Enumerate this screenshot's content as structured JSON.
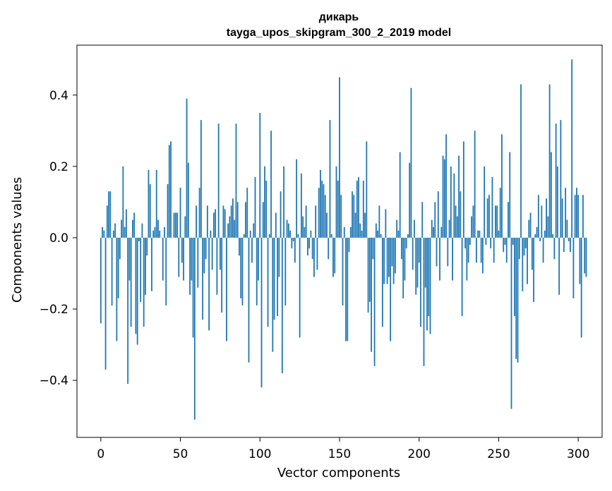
{
  "chart_data": {
    "type": "bar",
    "title_line1": "дикарь",
    "title_line2": "tayga_upos_skipgram_300_2_2019 model",
    "xlabel": "Vector components",
    "ylabel": "Components values",
    "xlim": [
      -15,
      315
    ],
    "ylim": [
      -0.56,
      0.54
    ],
    "xticks": [
      0,
      50,
      100,
      150,
      200,
      250,
      300
    ],
    "xtick_labels": [
      "0",
      "50",
      "100",
      "150",
      "200",
      "250",
      "300"
    ],
    "yticks": [
      -0.4,
      -0.2,
      0.0,
      0.2,
      0.4
    ],
    "ytick_labels": [
      "−0.4",
      "−0.2",
      "0.0",
      "0.2",
      "0.4"
    ],
    "bar_color": "#1f77b4",
    "grid": false,
    "values": [
      -0.24,
      0.03,
      0.02,
      -0.37,
      0.09,
      0.13,
      0.13,
      -0.19,
      0.02,
      0.04,
      -0.29,
      -0.17,
      -0.06,
      0.05,
      0.2,
      0.03,
      0.08,
      -0.41,
      -0.12,
      -0.25,
      0.05,
      0.07,
      -0.27,
      -0.3,
      -0.01,
      -0.18,
      0.04,
      -0.25,
      -0.16,
      -0.05,
      0.19,
      0.15,
      -0.15,
      0.02,
      0.03,
      0.19,
      0.05,
      0.02,
      0.0,
      -0.12,
      0.03,
      -0.19,
      0.15,
      0.26,
      0.27,
      0.0,
      0.07,
      0.07,
      0.07,
      -0.11,
      0.14,
      -0.07,
      -0.12,
      0.06,
      0.39,
      0.21,
      -0.16,
      -0.12,
      -0.28,
      -0.51,
      0.09,
      -0.14,
      0.14,
      0.33,
      -0.23,
      -0.1,
      -0.06,
      0.09,
      -0.26,
      0.02,
      -0.09,
      0.07,
      0.08,
      -0.16,
      0.32,
      -0.09,
      -0.21,
      0.09,
      0.08,
      -0.29,
      0.04,
      0.06,
      0.09,
      0.11,
      0.05,
      0.32,
      0.1,
      -0.05,
      -0.17,
      -0.19,
      0.01,
      0.1,
      0.14,
      -0.35,
      0.02,
      -0.07,
      0.04,
      0.17,
      -0.19,
      -0.12,
      0.35,
      -0.42,
      0.1,
      0.2,
      0.16,
      -0.25,
      0.01,
      0.3,
      -0.32,
      -0.23,
      0.07,
      -0.22,
      -0.11,
      0.13,
      -0.38,
      0.2,
      -0.19,
      0.05,
      0.04,
      0.02,
      -0.03,
      -0.01,
      -0.07,
      0.22,
      0.01,
      -0.28,
      0.18,
      0.06,
      0.03,
      0.09,
      -0.05,
      -0.03,
      0.02,
      -0.06,
      -0.11,
      0.09,
      -0.09,
      0.14,
      0.19,
      0.16,
      0.15,
      0.12,
      0.07,
      -0.06,
      0.33,
      0.01,
      -0.11,
      -0.1,
      0.2,
      0.16,
      0.45,
      0.12,
      -0.19,
      0.03,
      -0.29,
      -0.29,
      -0.04,
      0.03,
      0.13,
      0.12,
      0.07,
      0.16,
      0.17,
      0.04,
      0.02,
      0.16,
      0.07,
      0.27,
      -0.21,
      -0.18,
      -0.32,
      -0.06,
      -0.36,
      0.04,
      0.02,
      0.09,
      0.01,
      -0.25,
      -0.13,
      0.08,
      -0.13,
      -0.11,
      -0.29,
      -0.08,
      -0.13,
      -0.1,
      0.05,
      0.02,
      0.24,
      -0.06,
      -0.17,
      -0.12,
      -0.03,
      0.01,
      0.21,
      0.42,
      -0.09,
      0.05,
      -0.16,
      -0.14,
      -0.07,
      -0.25,
      0.1,
      -0.36,
      -0.14,
      -0.26,
      -0.22,
      -0.27,
      0.05,
      0.03,
      0.1,
      -0.08,
      0.13,
      -0.12,
      0.03,
      0.23,
      0.22,
      0.29,
      -0.08,
      0.05,
      0.2,
      -0.12,
      0.18,
      0.09,
      0.06,
      0.23,
      0.13,
      -0.22,
      0.27,
      -0.03,
      -0.12,
      -0.07,
      -0.02,
      0.06,
      0.09,
      0.3,
      -0.07,
      0.02,
      0.02,
      -0.07,
      -0.1,
      0.2,
      -0.02,
      0.11,
      0.12,
      -0.03,
      0.17,
      -0.07,
      0.09,
      0.09,
      0.02,
      0.14,
      0.29,
      -0.04,
      -0.02,
      -0.07,
      0.1,
      0.24,
      -0.48,
      -0.02,
      -0.22,
      -0.34,
      -0.35,
      -0.06,
      0.43,
      -0.15,
      -0.05,
      -0.03,
      -0.13,
      0.05,
      0.07,
      -0.09,
      -0.18,
      0.01,
      0.03,
      0.12,
      -0.01,
      0.09,
      -0.07,
      0.02,
      0.11,
      0.06,
      0.43,
      0.24,
      0.01,
      -0.06,
      0.32,
      0.2,
      -0.16,
      0.33,
      0.11,
      -0.04,
      0.14,
      0.05,
      -0.01,
      -0.04,
      0.5,
      -0.17,
      0.12,
      0.14,
      0.12,
      -0.13,
      -0.28,
      0.12,
      -0.1,
      -0.11
    ]
  }
}
